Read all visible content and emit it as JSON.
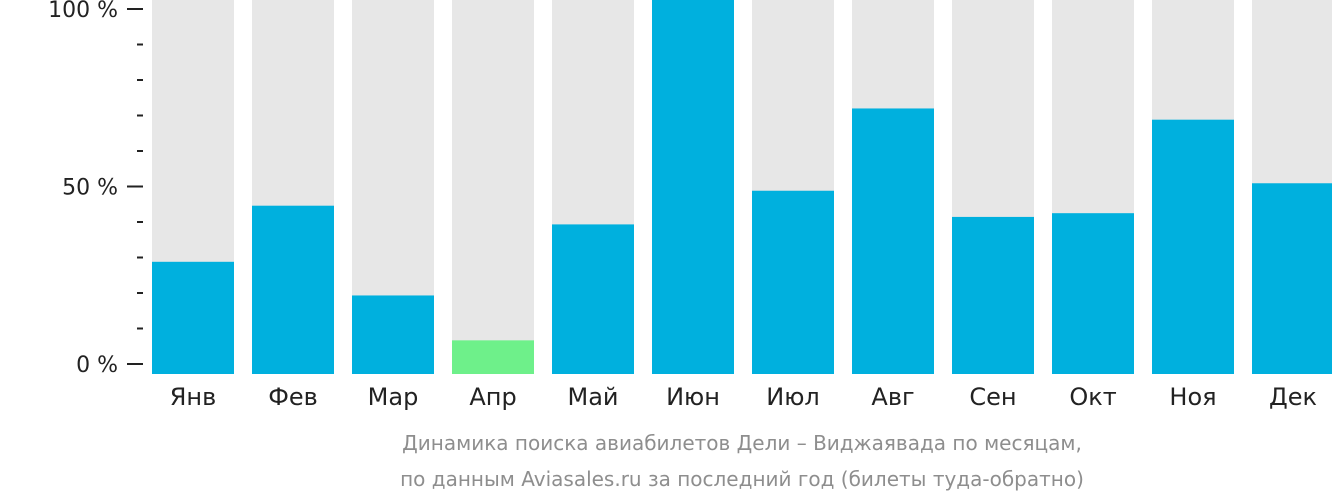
{
  "chart_data": {
    "type": "bar",
    "categories": [
      "Янв",
      "Фев",
      "Мар",
      "Апр",
      "Май",
      "Июн",
      "Июл",
      "Авг",
      "Сен",
      "Окт",
      "Ноя",
      "Дек"
    ],
    "values": [
      30,
      45,
      21,
      9,
      40,
      100,
      49,
      71,
      42,
      43,
      68,
      51
    ],
    "highlight_index": 3,
    "ylim": [
      0,
      100
    ],
    "y_ticks": [
      {
        "value": 0,
        "label": "0 %"
      },
      {
        "value": 50,
        "label": "50 %"
      },
      {
        "value": 100,
        "label": "100 %"
      }
    ],
    "minor_tick_step": 10,
    "colors": {
      "bar": "#00b0de",
      "highlight": "#6ef08a",
      "track": "#e7e7e7",
      "axis": "#222222"
    }
  },
  "caption": {
    "line1": "Динамика поиска авиабилетов Дели – Виджаявада по месяцам,",
    "line2": "по данным Aviasales.ru за последний год (билеты туда-обратно)"
  }
}
